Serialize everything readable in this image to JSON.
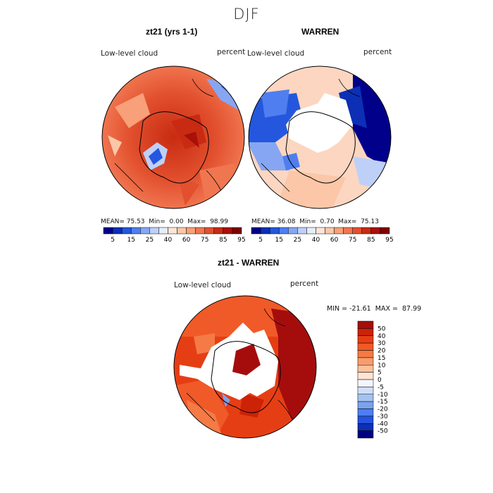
{
  "figure": {
    "title": "DJF"
  },
  "panels": [
    {
      "title": "zt21 (yrs 1-1)",
      "variable": "Low-level cloud",
      "units": "percent",
      "stats": {
        "mean": "75.53",
        "min": "0.00",
        "max": "98.99"
      }
    },
    {
      "title": "WARREN",
      "variable": "Low-level cloud",
      "units": "percent",
      "stats": {
        "mean": "36.08",
        "min": "0.70",
        "max": "75.13"
      }
    },
    {
      "title": "zt21 - WARREN",
      "variable": "Low-level cloud",
      "units": "percent",
      "stats_text": "MIN = -21.61  MAX =  87.99"
    }
  ],
  "stat_labels": {
    "mean": "MEAN=",
    "min": "Min=",
    "max": "Max="
  },
  "colorbar_top": {
    "labels": [
      "5",
      "15",
      "25",
      "40",
      "60",
      "75",
      "85",
      "95"
    ],
    "colors": [
      "#00008b",
      "#0c2fb5",
      "#2457dd",
      "#4f7ef0",
      "#86a6f4",
      "#bed0f8",
      "#e5eefb",
      "#fde6d8",
      "#fbc7a8",
      "#f7a079",
      "#f07650",
      "#e2502e",
      "#c82b12",
      "#a8110a",
      "#800000"
    ]
  },
  "colorbar_diff": {
    "labels": [
      "50",
      "40",
      "30",
      "20",
      "15",
      "10",
      "5",
      "0",
      "-5",
      "-10",
      "-15",
      "-20",
      "-30",
      "-40",
      "-50"
    ],
    "colors": [
      "#a50d0d",
      "#cc2208",
      "#e63e14",
      "#f05a28",
      "#f57a45",
      "#f89c6b",
      "#fbc19e",
      "#fde4d4",
      "#f4f6fb",
      "#cfdff8",
      "#a6c2f3",
      "#7ba2ee",
      "#4f7ef0",
      "#2452dd",
      "#0c2fb5",
      "#000080"
    ]
  }
}
